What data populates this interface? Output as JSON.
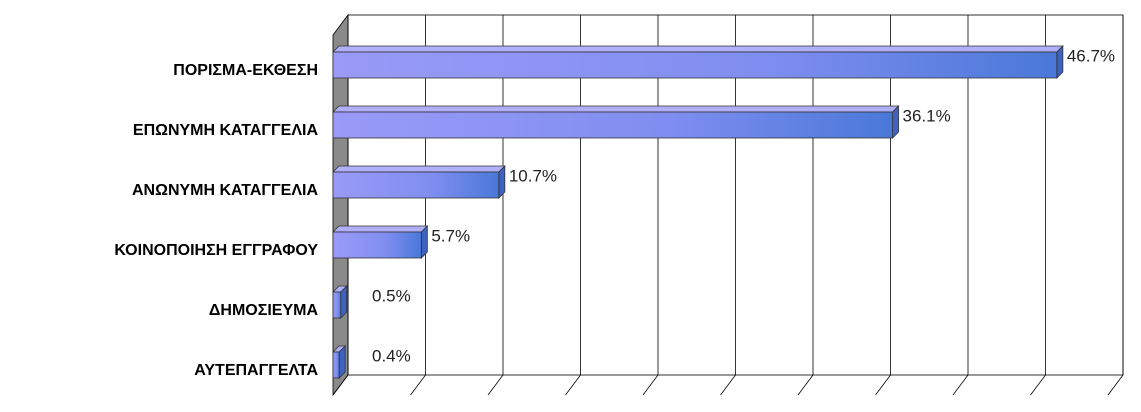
{
  "chart_data": {
    "type": "bar",
    "orientation": "horizontal",
    "categories": [
      "ΠΟΡΙΣΜΑ-ΕΚΘΕΣΗ",
      "ΕΠΩΝΥΜΗ ΚΑΤΑΓΓΕΛΙΑ",
      "ΑΝΩΝΥΜΗ ΚΑΤΑΓΓΕΛΙΑ",
      "ΚΟΙΝΟΠΟΙΗΣΗ ΕΓΓΡΑΦΟΥ",
      "ΔΗΜΟΣΙΕΥΜΑ",
      "ΑΥΤΕΠΑΓΓΕΛΤΑ"
    ],
    "values": [
      46.7,
      36.1,
      10.7,
      5.7,
      0.5,
      0.4
    ],
    "value_labels": [
      "46.7%",
      "36.1%",
      "10.7%",
      "5.7%",
      "0.5%",
      "0.4%"
    ],
    "color": "#8080f0",
    "xlim": [
      0,
      50
    ],
    "xticks": [
      0,
      5,
      10,
      15,
      20,
      25,
      30,
      35,
      40,
      45,
      50
    ],
    "grid": true
  }
}
